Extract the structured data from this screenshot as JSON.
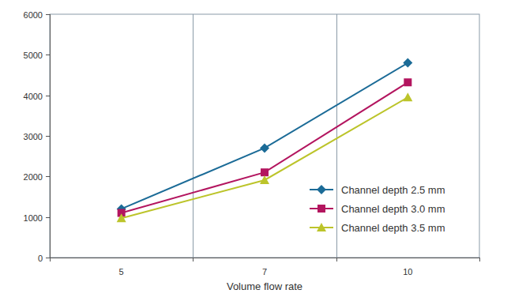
{
  "chart_data": {
    "type": "line",
    "x_label": "Volume flow rate",
    "categories": [
      "5",
      "7",
      "10"
    ],
    "series": [
      {
        "name": "Channel depth 2.5 mm",
        "color": "#1b6b97",
        "marker": "diamond",
        "values": [
          1200,
          2700,
          4800
        ]
      },
      {
        "name": "Channel depth 3.0 mm",
        "color": "#b3155f",
        "marker": "square",
        "values": [
          1100,
          2100,
          4320
        ]
      },
      {
        "name": "Channel depth 3.5 mm",
        "color": "#bcc42a",
        "marker": "triangle",
        "values": [
          970,
          1910,
          3950
        ]
      }
    ],
    "ylim": [
      0,
      6000
    ],
    "yticks": [
      0,
      1000,
      2000,
      3000,
      4000,
      5000,
      6000
    ],
    "grid": true,
    "legend": "right"
  }
}
